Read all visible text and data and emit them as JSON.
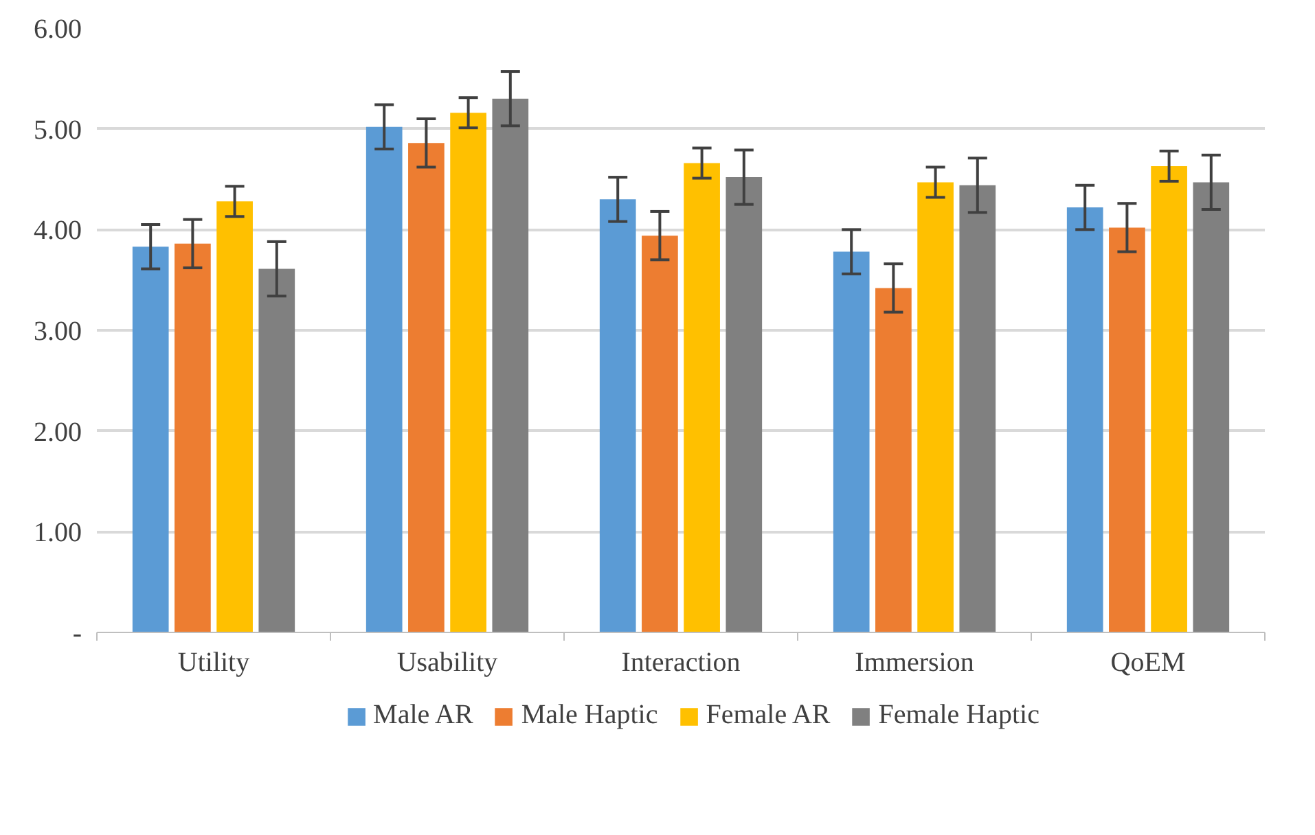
{
  "chart_data": {
    "type": "bar",
    "categories": [
      "Utility",
      "Usability",
      "Interaction",
      "Immersion",
      "QoEM"
    ],
    "series": [
      {
        "name": "Male AR",
        "color": "#5b9bd5",
        "values": [
          3.83,
          5.02,
          4.3,
          3.78,
          4.22
        ],
        "errors": [
          0.22,
          0.22,
          0.22,
          0.22,
          0.22
        ]
      },
      {
        "name": "Male Haptic",
        "color": "#ed7d31",
        "values": [
          3.86,
          4.86,
          3.94,
          3.42,
          4.02
        ],
        "errors": [
          0.24,
          0.24,
          0.24,
          0.24,
          0.24
        ]
      },
      {
        "name": "Female AR",
        "color": "#ffc000",
        "values": [
          4.28,
          5.16,
          4.66,
          4.47,
          4.63
        ],
        "errors": [
          0.15,
          0.15,
          0.15,
          0.15,
          0.15
        ]
      },
      {
        "name": "Female Haptic",
        "color": "#808080",
        "values": [
          3.61,
          5.3,
          4.52,
          4.44,
          4.47
        ],
        "errors": [
          0.27,
          0.27,
          0.27,
          0.27,
          0.27
        ]
      }
    ],
    "ylim": [
      0,
      6
    ],
    "yticks": [
      {
        "value": 0,
        "label": "-"
      },
      {
        "value": 1,
        "label": "1.00"
      },
      {
        "value": 2,
        "label": "2.00"
      },
      {
        "value": 3,
        "label": "3.00"
      },
      {
        "value": 4,
        "label": "4.00"
      },
      {
        "value": 5,
        "label": "5.00"
      },
      {
        "value": 6,
        "label": "6.00"
      }
    ],
    "grid": "y",
    "legend": "bottom"
  }
}
